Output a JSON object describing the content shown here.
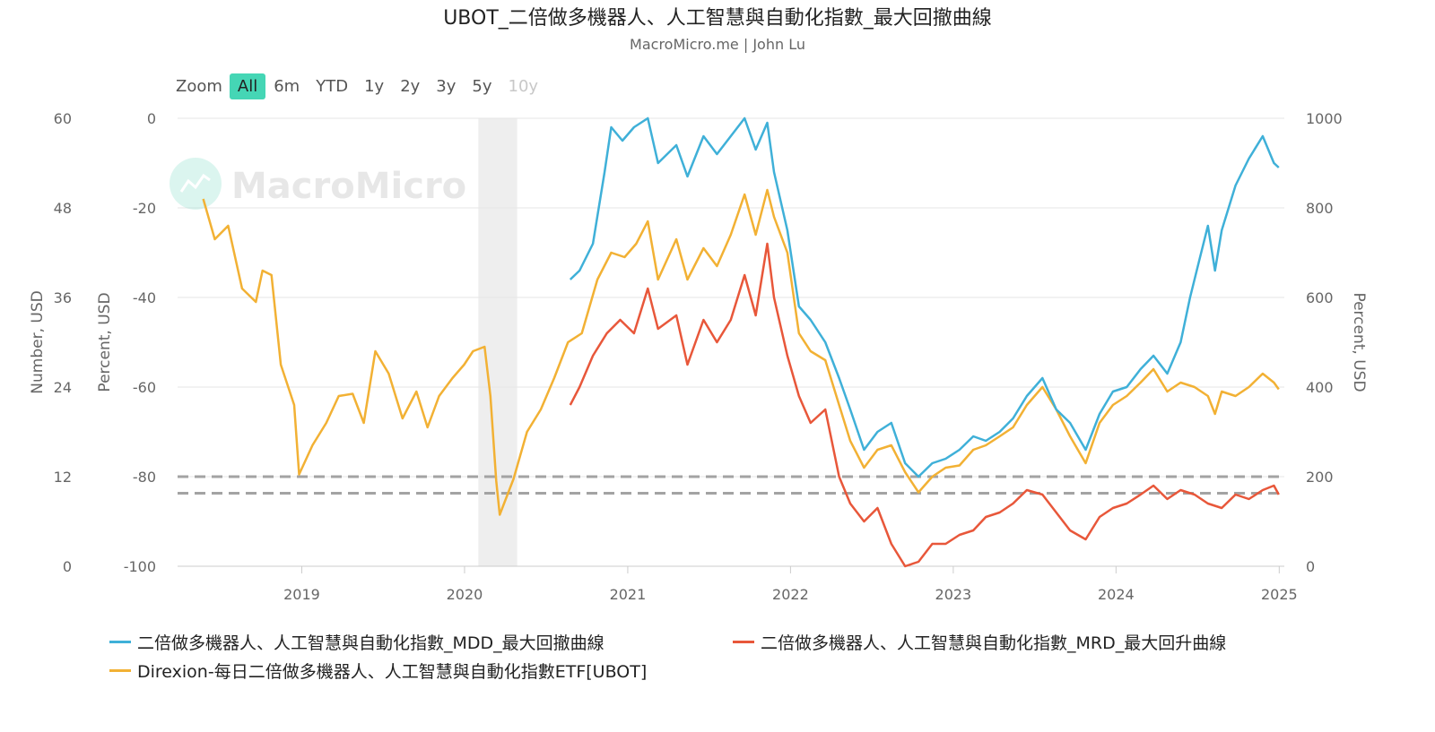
{
  "title": "UBOT_二倍做多機器人、人工智慧與自動化指數_最大回撤曲線",
  "subtitle": "MacroMicro.me | John Lu",
  "watermark": "MacroMicro",
  "zoom": {
    "label": "Zoom",
    "buttons": [
      "All",
      "6m",
      "YTD",
      "1y",
      "2y",
      "3y",
      "5y",
      "10y"
    ],
    "active": "All",
    "disabled": [
      "10y"
    ]
  },
  "chart_data": {
    "type": "line",
    "x_ticks": [
      "2019",
      "2020",
      "2021",
      "2022",
      "2023",
      "2024",
      "2025"
    ],
    "axes": {
      "left_outer": {
        "label": "Number, USD",
        "ticks": [
          "60",
          "48",
          "36",
          "24",
          "12",
          "0"
        ],
        "range": [
          0,
          60
        ]
      },
      "left_inner": {
        "label": "Percent, USD",
        "ticks": [
          "0",
          "-20",
          "-40",
          "-60",
          "-80",
          "-100"
        ],
        "range": [
          -100,
          0
        ]
      },
      "right": {
        "label": "Percent, USD",
        "ticks": [
          "1000",
          "800",
          "600",
          "400",
          "200",
          "0"
        ],
        "range": [
          0,
          1000
        ]
      }
    },
    "reference_lines": [
      -80,
      -83.7
    ],
    "recession_band": {
      "from": "2020-02",
      "to": "2020-04"
    },
    "grid": true,
    "legend_position": "bottom",
    "series": [
      {
        "name": "二倍做多機器人、人工智慧與自動化指數_MDD_最大回撤曲線",
        "color": "#3fb0d8",
        "axis": "left_inner",
        "points": [
          [
            "2020-08-25",
            -36
          ],
          [
            "2020-09-15",
            -34
          ],
          [
            "2020-10-15",
            -28
          ],
          [
            "2020-11-10",
            -12
          ],
          [
            "2020-11-25",
            -2
          ],
          [
            "2020-12-20",
            -5
          ],
          [
            "2021-01-15",
            -2
          ],
          [
            "2021-02-15",
            0
          ],
          [
            "2021-03-10",
            -10
          ],
          [
            "2021-04-20",
            -6
          ],
          [
            "2021-05-15",
            -13
          ],
          [
            "2021-06-20",
            -4
          ],
          [
            "2021-07-20",
            -8
          ],
          [
            "2021-08-20",
            -4
          ],
          [
            "2021-09-20",
            0
          ],
          [
            "2021-10-15",
            -7
          ],
          [
            "2021-11-10",
            -1
          ],
          [
            "2021-11-25",
            -12
          ],
          [
            "2021-12-25",
            -25
          ],
          [
            "2022-01-20",
            -42
          ],
          [
            "2022-02-15",
            -45
          ],
          [
            "2022-03-20",
            -50
          ],
          [
            "2022-04-20",
            -58
          ],
          [
            "2022-05-15",
            -65
          ],
          [
            "2022-06-15",
            -74
          ],
          [
            "2022-07-15",
            -70
          ],
          [
            "2022-08-15",
            -68
          ],
          [
            "2022-09-15",
            -77
          ],
          [
            "2022-10-15",
            -80
          ],
          [
            "2022-11-15",
            -77
          ],
          [
            "2022-12-15",
            -76
          ],
          [
            "2023-01-15",
            -74
          ],
          [
            "2023-02-15",
            -71
          ],
          [
            "2023-03-15",
            -72
          ],
          [
            "2023-04-15",
            -70
          ],
          [
            "2023-05-15",
            -67
          ],
          [
            "2023-06-15",
            -62
          ],
          [
            "2023-07-20",
            -58
          ],
          [
            "2023-08-20",
            -65
          ],
          [
            "2023-09-20",
            -68
          ],
          [
            "2023-10-25",
            -74
          ],
          [
            "2023-11-25",
            -66
          ],
          [
            "2023-12-25",
            -61
          ],
          [
            "2024-01-25",
            -60
          ],
          [
            "2024-02-25",
            -56
          ],
          [
            "2024-03-25",
            -53
          ],
          [
            "2024-04-25",
            -57
          ],
          [
            "2024-05-25",
            -50
          ],
          [
            "2024-06-15",
            -40
          ],
          [
            "2024-07-05",
            -32
          ],
          [
            "2024-07-25",
            -24
          ],
          [
            "2024-08-10",
            -34
          ],
          [
            "2024-08-25",
            -25
          ],
          [
            "2024-09-25",
            -15
          ],
          [
            "2024-10-25",
            -9
          ],
          [
            "2024-11-25",
            -4
          ],
          [
            "2024-12-20",
            -10
          ],
          [
            "2024-12-31",
            -11
          ]
        ]
      },
      {
        "name": "二倍做多機器人、人工智慧與自動化指數_MRD_最大回升曲線",
        "color": "#e8573a",
        "axis": "left_inner",
        "points": [
          [
            "2020-08-25",
            -64
          ],
          [
            "2020-09-15",
            -60
          ],
          [
            "2020-10-15",
            -53
          ],
          [
            "2020-11-15",
            -48
          ],
          [
            "2020-12-15",
            -45
          ],
          [
            "2021-01-15",
            -48
          ],
          [
            "2021-02-15",
            -38
          ],
          [
            "2021-03-10",
            -47
          ],
          [
            "2021-04-20",
            -44
          ],
          [
            "2021-05-15",
            -55
          ],
          [
            "2021-06-20",
            -45
          ],
          [
            "2021-07-20",
            -50
          ],
          [
            "2021-08-20",
            -45
          ],
          [
            "2021-09-20",
            -35
          ],
          [
            "2021-10-15",
            -44
          ],
          [
            "2021-11-10",
            -28
          ],
          [
            "2021-11-25",
            -40
          ],
          [
            "2021-12-25",
            -53
          ],
          [
            "2022-01-20",
            -62
          ],
          [
            "2022-02-15",
            -68
          ],
          [
            "2022-03-20",
            -65
          ],
          [
            "2022-04-20",
            -80
          ],
          [
            "2022-05-15",
            -86
          ],
          [
            "2022-06-15",
            -90
          ],
          [
            "2022-07-15",
            -87
          ],
          [
            "2022-08-15",
            -95
          ],
          [
            "2022-09-15",
            -100
          ],
          [
            "2022-10-15",
            -99
          ],
          [
            "2022-11-15",
            -95
          ],
          [
            "2022-12-15",
            -95
          ],
          [
            "2023-01-15",
            -93
          ],
          [
            "2023-02-15",
            -92
          ],
          [
            "2023-03-15",
            -89
          ],
          [
            "2023-04-15",
            -88
          ],
          [
            "2023-05-15",
            -86
          ],
          [
            "2023-06-15",
            -83
          ],
          [
            "2023-07-20",
            -84
          ],
          [
            "2023-08-20",
            -88
          ],
          [
            "2023-09-20",
            -92
          ],
          [
            "2023-10-25",
            -94
          ],
          [
            "2023-11-25",
            -89
          ],
          [
            "2023-12-25",
            -87
          ],
          [
            "2024-01-25",
            -86
          ],
          [
            "2024-02-25",
            -84
          ],
          [
            "2024-03-25",
            -82
          ],
          [
            "2024-04-25",
            -85
          ],
          [
            "2024-05-25",
            -83
          ],
          [
            "2024-06-25",
            -84
          ],
          [
            "2024-07-25",
            -86
          ],
          [
            "2024-08-25",
            -87
          ],
          [
            "2024-09-25",
            -84
          ],
          [
            "2024-10-25",
            -85
          ],
          [
            "2024-11-25",
            -83
          ],
          [
            "2024-12-20",
            -82
          ],
          [
            "2024-12-31",
            -84
          ]
        ]
      },
      {
        "name": "Direxion-每日二倍做多機器人、人工智慧與自動化指數ETF[UBOT]",
        "color": "#f2b134",
        "axis": "right",
        "points": [
          [
            "2018-05-25",
            820
          ],
          [
            "2018-06-20",
            730
          ],
          [
            "2018-07-20",
            760
          ],
          [
            "2018-08-20",
            620
          ],
          [
            "2018-09-20",
            590
          ],
          [
            "2018-10-05",
            660
          ],
          [
            "2018-10-25",
            650
          ],
          [
            "2018-11-15",
            450
          ],
          [
            "2018-12-15",
            360
          ],
          [
            "2018-12-26",
            205
          ],
          [
            "2019-01-25",
            270
          ],
          [
            "2019-02-25",
            320
          ],
          [
            "2019-03-25",
            380
          ],
          [
            "2019-04-25",
            385
          ],
          [
            "2019-05-20",
            320
          ],
          [
            "2019-06-15",
            480
          ],
          [
            "2019-07-15",
            430
          ],
          [
            "2019-08-15",
            330
          ],
          [
            "2019-09-15",
            390
          ],
          [
            "2019-10-10",
            310
          ],
          [
            "2019-11-05",
            380
          ],
          [
            "2019-12-05",
            420
          ],
          [
            "2019-12-31",
            450
          ],
          [
            "2020-01-20",
            480
          ],
          [
            "2020-02-15",
            490
          ],
          [
            "2020-02-28",
            380
          ],
          [
            "2020-03-12",
            190
          ],
          [
            "2020-03-20",
            115
          ],
          [
            "2020-04-20",
            195
          ],
          [
            "2020-05-20",
            300
          ],
          [
            "2020-06-20",
            350
          ],
          [
            "2020-07-20",
            420
          ],
          [
            "2020-08-20",
            500
          ],
          [
            "2020-09-20",
            520
          ],
          [
            "2020-10-25",
            640
          ],
          [
            "2020-11-25",
            700
          ],
          [
            "2020-12-25",
            690
          ],
          [
            "2021-01-20",
            720
          ],
          [
            "2021-02-15",
            770
          ],
          [
            "2021-03-10",
            640
          ],
          [
            "2021-04-20",
            730
          ],
          [
            "2021-05-15",
            640
          ],
          [
            "2021-06-20",
            710
          ],
          [
            "2021-07-20",
            670
          ],
          [
            "2021-08-20",
            740
          ],
          [
            "2021-09-20",
            830
          ],
          [
            "2021-10-15",
            740
          ],
          [
            "2021-11-10",
            840
          ],
          [
            "2021-11-25",
            780
          ],
          [
            "2021-12-25",
            700
          ],
          [
            "2022-01-20",
            520
          ],
          [
            "2022-02-15",
            480
          ],
          [
            "2022-03-20",
            460
          ],
          [
            "2022-04-20",
            360
          ],
          [
            "2022-05-15",
            280
          ],
          [
            "2022-06-15",
            220
          ],
          [
            "2022-07-15",
            260
          ],
          [
            "2022-08-15",
            270
          ],
          [
            "2022-09-15",
            210
          ],
          [
            "2022-10-15",
            165
          ],
          [
            "2022-11-15",
            200
          ],
          [
            "2022-12-15",
            220
          ],
          [
            "2023-01-15",
            225
          ],
          [
            "2023-02-15",
            260
          ],
          [
            "2023-03-15",
            270
          ],
          [
            "2023-04-15",
            290
          ],
          [
            "2023-05-15",
            310
          ],
          [
            "2023-06-15",
            360
          ],
          [
            "2023-07-20",
            400
          ],
          [
            "2023-08-20",
            350
          ],
          [
            "2023-09-20",
            290
          ],
          [
            "2023-10-25",
            230
          ],
          [
            "2023-11-25",
            320
          ],
          [
            "2023-12-25",
            360
          ],
          [
            "2024-01-25",
            380
          ],
          [
            "2024-02-25",
            410
          ],
          [
            "2024-03-25",
            440
          ],
          [
            "2024-04-25",
            390
          ],
          [
            "2024-05-25",
            410
          ],
          [
            "2024-06-25",
            400
          ],
          [
            "2024-07-25",
            380
          ],
          [
            "2024-08-10",
            340
          ],
          [
            "2024-08-25",
            390
          ],
          [
            "2024-09-25",
            380
          ],
          [
            "2024-10-25",
            400
          ],
          [
            "2024-11-25",
            430
          ],
          [
            "2024-12-20",
            410
          ],
          [
            "2024-12-31",
            395
          ]
        ]
      }
    ]
  }
}
